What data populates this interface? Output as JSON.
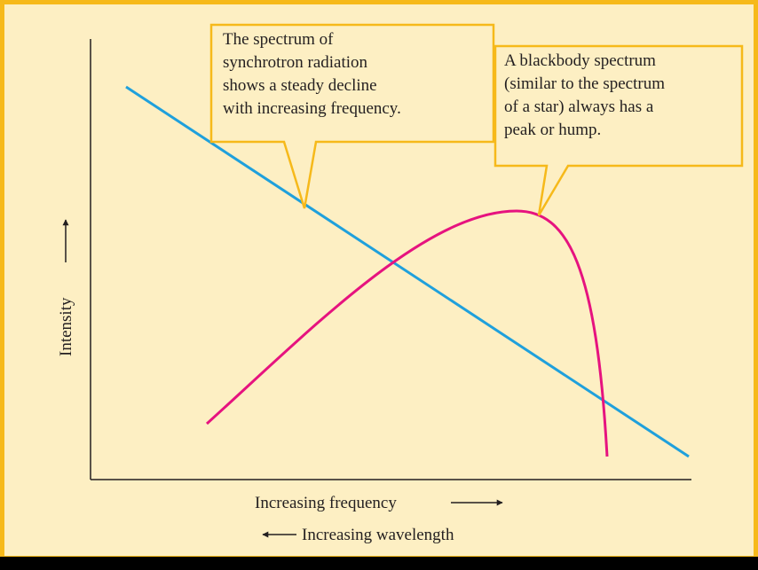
{
  "callouts": [
    {
      "lines": [
        "The spectrum of",
        "synchrotron radiation",
        "shows a steady decline",
        "with increasing frequency."
      ]
    },
    {
      "lines": [
        "A blackbody spectrum",
        "(similar to the spectrum",
        "of a star) always has a",
        "peak or hump."
      ]
    }
  ],
  "y_axis_label": "Intensity",
  "x_axis_label": "Increasing frequency",
  "x_axis_label_2": "Increasing wavelength"
}
